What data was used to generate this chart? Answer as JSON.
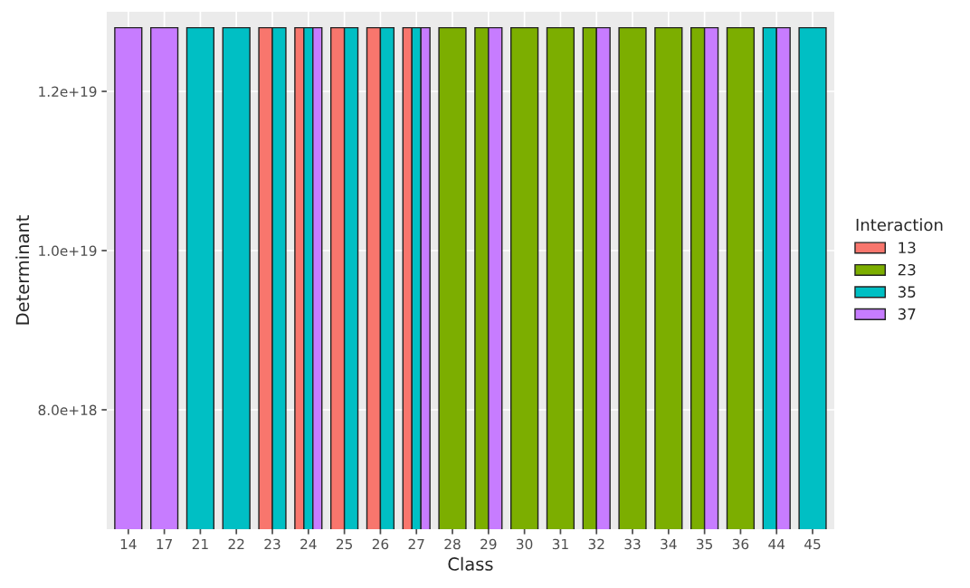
{
  "chart_data": {
    "type": "bar",
    "xlabel": "Class",
    "ylabel": "Determinant",
    "legend_title": "Interaction",
    "legend": "right",
    "grid": true,
    "categories": [
      "14",
      "17",
      "21",
      "22",
      "23",
      "24",
      "25",
      "26",
      "27",
      "28",
      "29",
      "30",
      "31",
      "32",
      "33",
      "34",
      "35",
      "36",
      "44",
      "45"
    ],
    "series": [
      {
        "name": "13",
        "color": "#f8766d",
        "values": [
          null,
          null,
          null,
          null,
          1.28e+19,
          1.28e+19,
          1.28e+19,
          1.28e+19,
          1.28e+19,
          null,
          null,
          null,
          null,
          null,
          null,
          null,
          null,
          null,
          null,
          null
        ]
      },
      {
        "name": "23",
        "color": "#7cae00",
        "values": [
          null,
          null,
          null,
          null,
          null,
          null,
          null,
          null,
          null,
          1.28e+19,
          1.28e+19,
          1.28e+19,
          1.28e+19,
          1.28e+19,
          1.28e+19,
          1.28e+19,
          1.28e+19,
          1.28e+19,
          null,
          null
        ]
      },
      {
        "name": "35",
        "color": "#00bfc4",
        "values": [
          null,
          null,
          1.28e+19,
          1.28e+19,
          1.28e+19,
          1.28e+19,
          1.28e+19,
          1.28e+19,
          1.28e+19,
          null,
          null,
          null,
          null,
          null,
          null,
          null,
          null,
          null,
          1.28e+19,
          1.28e+19
        ]
      },
      {
        "name": "37",
        "color": "#c77cff",
        "values": [
          1.28e+19,
          1.28e+19,
          null,
          null,
          null,
          1.28e+19,
          null,
          null,
          1.28e+19,
          null,
          1.28e+19,
          null,
          null,
          1.28e+19,
          null,
          null,
          1.28e+19,
          null,
          1.28e+19,
          null
        ]
      }
    ],
    "ylim": [
      6.5e+18,
      1.3e+19
    ],
    "yticks": [
      {
        "value": 8e+18,
        "label": "8.0e+18"
      },
      {
        "value": 1e+19,
        "label": "1.0e+19"
      },
      {
        "value": 1.2e+19,
        "label": "1.2e+19"
      }
    ]
  }
}
